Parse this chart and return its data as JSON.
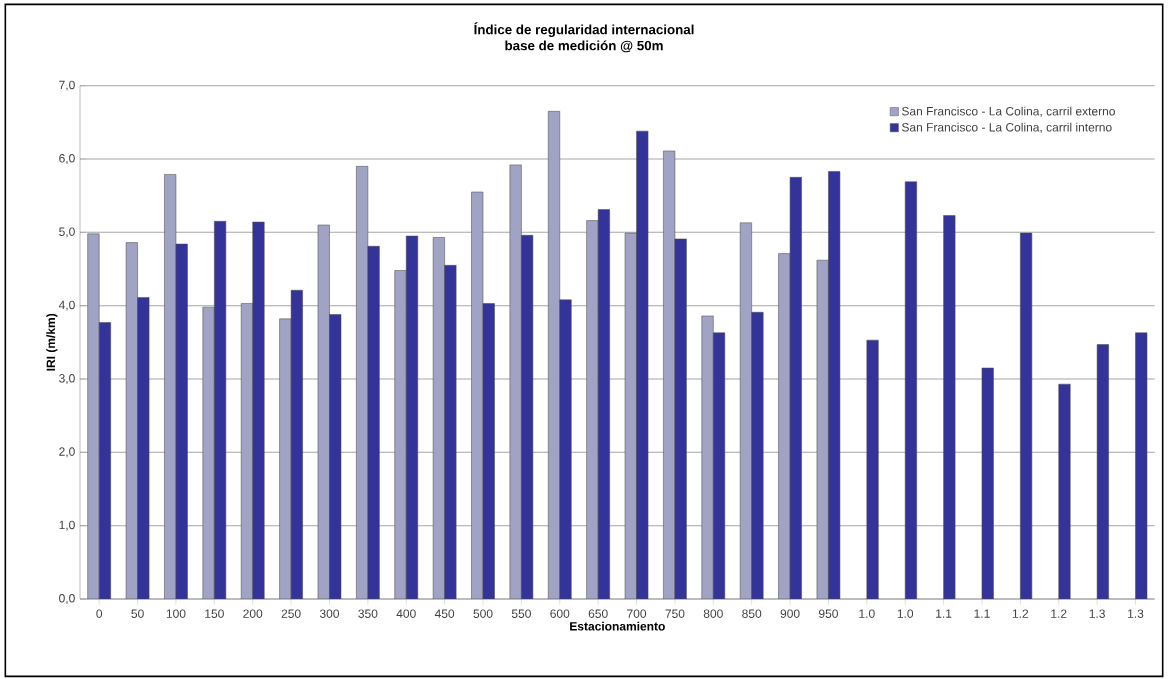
{
  "chart_data": {
    "type": "bar",
    "title": "Índice de regularidad internacional",
    "subtitle": "base de medición @ 50m",
    "xlabel": "Estacionamiento",
    "ylabel": "IRI (m/km)",
    "categories": [
      "0",
      "50",
      "100",
      "150",
      "200",
      "250",
      "300",
      "350",
      "400",
      "450",
      "500",
      "550",
      "600",
      "650",
      "700",
      "750",
      "800",
      "850",
      "900",
      "950",
      "1.0",
      "1.0",
      "1.1",
      "1.1",
      "1.2",
      "1.2",
      "1.3",
      "1.3"
    ],
    "series": [
      {
        "name": "San Francisco - La Colina, carril externo",
        "color": "#a0a3c4",
        "values": [
          4.98,
          4.86,
          5.79,
          3.98,
          4.03,
          3.82,
          5.1,
          5.9,
          4.48,
          4.93,
          5.55,
          5.92,
          6.65,
          5.16,
          4.99,
          6.11,
          3.86,
          5.13,
          4.71,
          4.62,
          null,
          null,
          null,
          null,
          null,
          null,
          null,
          null
        ]
      },
      {
        "name": "San Francisco - La Colina, carril interno",
        "color": "#333399",
        "values": [
          3.77,
          4.11,
          4.84,
          5.15,
          5.14,
          4.21,
          3.88,
          4.81,
          4.95,
          4.55,
          4.03,
          4.96,
          4.08,
          5.31,
          6.38,
          4.91,
          3.63,
          3.91,
          5.75,
          5.83,
          3.53,
          5.69,
          5.23,
          3.15,
          4.99,
          2.93,
          3.47,
          3.63
        ]
      }
    ],
    "ylim": [
      0,
      7
    ],
    "yticks": [
      {
        "value": 0,
        "label": "0,0"
      },
      {
        "value": 1,
        "label": "1,0"
      },
      {
        "value": 2,
        "label": "2,0"
      },
      {
        "value": 3,
        "label": "3,0"
      },
      {
        "value": 4,
        "label": "4,0"
      },
      {
        "value": 5,
        "label": "5,0"
      },
      {
        "value": 6,
        "label": "6,0"
      },
      {
        "value": 7,
        "label": "7,0"
      }
    ],
    "grid": "y",
    "legend": "top right"
  }
}
